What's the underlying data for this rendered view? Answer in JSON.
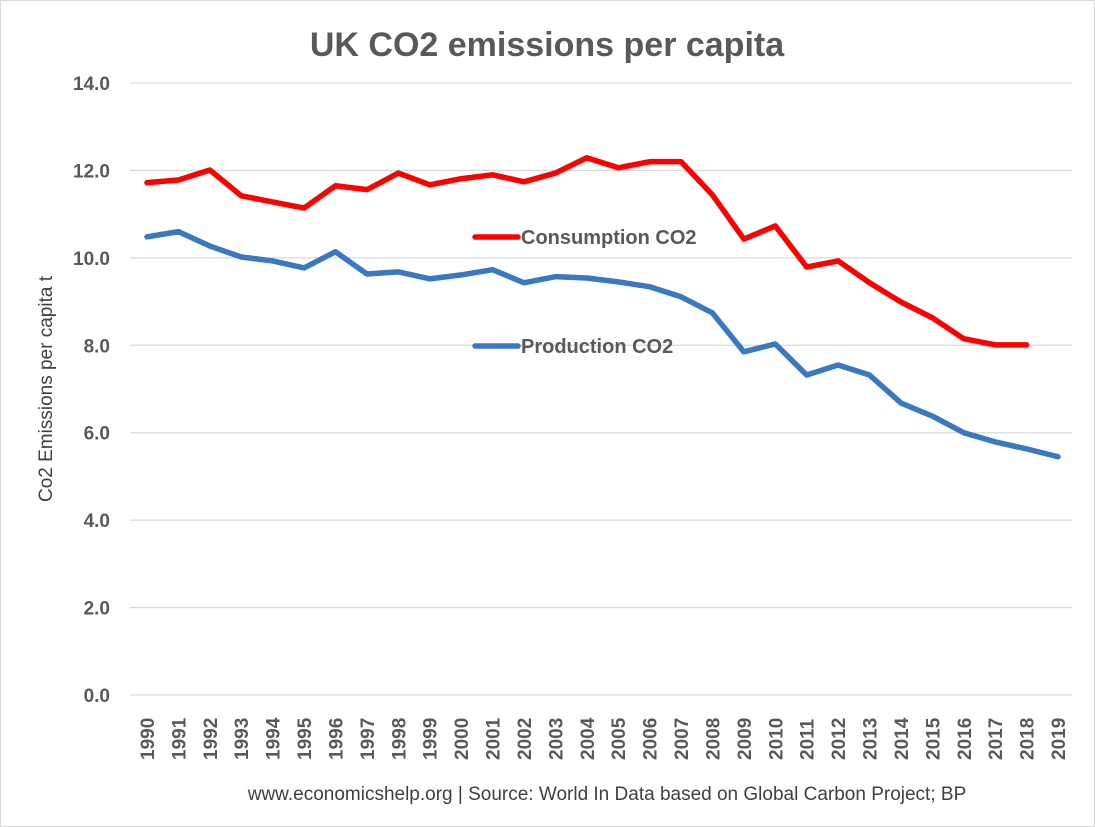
{
  "chart_data": {
    "type": "line",
    "title": "UK CO2 emissions per capita",
    "xlabel": "",
    "ylabel": "Co2 Emissions per capita t",
    "ylim": [
      0,
      14
    ],
    "yticks": [
      "0.0",
      "2.0",
      "4.0",
      "6.0",
      "8.0",
      "10.0",
      "12.0",
      "14.0"
    ],
    "grid": true,
    "legend": "inline",
    "footer": "www.economicshelp.org | Source: World In Data based on Global Carbon Project; BP",
    "categories": [
      "1990",
      "1991",
      "1992",
      "1993",
      "1994",
      "1995",
      "1996",
      "1997",
      "1998",
      "1999",
      "2000",
      "2001",
      "2002",
      "2003",
      "2004",
      "2005",
      "2006",
      "2007",
      "2008",
      "2009",
      "2010",
      "2011",
      "2012",
      "2013",
      "2014",
      "2015",
      "2016",
      "2017",
      "2018",
      "2019"
    ],
    "series": [
      {
        "name": "Consumption CO2",
        "color": "#ff0000",
        "values": [
          11.72,
          11.78,
          12.01,
          11.42,
          11.28,
          11.14,
          11.65,
          11.56,
          11.94,
          11.67,
          11.81,
          11.9,
          11.74,
          11.94,
          12.29,
          12.06,
          12.2,
          12.2,
          11.44,
          10.43,
          10.73,
          9.79,
          9.93,
          9.43,
          8.99,
          8.63,
          8.15,
          8.01,
          8.01,
          null
        ]
      },
      {
        "name": "Production CO2",
        "color": "#3a78c0",
        "values": [
          10.48,
          10.6,
          10.27,
          10.02,
          9.93,
          9.77,
          10.14,
          9.63,
          9.68,
          9.52,
          9.61,
          9.73,
          9.43,
          9.57,
          9.54,
          9.45,
          9.34,
          9.11,
          8.74,
          7.85,
          8.03,
          7.32,
          7.55,
          7.32,
          6.68,
          6.38,
          6.0,
          5.79,
          5.63,
          5.45
        ]
      }
    ]
  }
}
